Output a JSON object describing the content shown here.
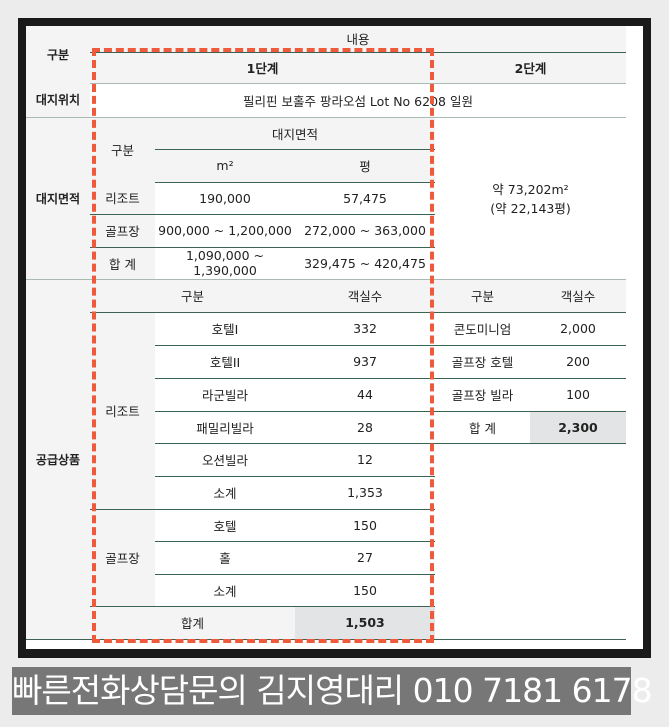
{
  "header": {
    "category": "구분",
    "content": "내용",
    "phase1": "1단계",
    "phase2": "2단계"
  },
  "location": {
    "label": "대지위치",
    "value": "필리핀 보홀주 팡라오섬 Lot No 6208 일원"
  },
  "site_area": {
    "label": "대지면적",
    "sub_category": "구분",
    "sub_header": "대지면적",
    "unit_m2": "m²",
    "unit_pyeong": "평",
    "rows": [
      {
        "name": "리조트",
        "m2": "190,000",
        "pyeong": "57,475"
      },
      {
        "name": "골프장",
        "m2": "900,000 ~ 1,200,000",
        "pyeong": "272,000 ~ 363,000"
      },
      {
        "name": "합 계",
        "m2": "1,090,000 ~ 1,390,000",
        "pyeong": "329,475 ~ 420,475"
      }
    ],
    "phase2_line1": "약 73,202m²",
    "phase2_line2": "(약 22,143평)"
  },
  "supply": {
    "label": "공급상품",
    "col_category": "구분",
    "col_rooms": "객실수",
    "resort": {
      "label": "리조트",
      "rows": [
        {
          "name": "호텔I",
          "rooms": "332"
        },
        {
          "name": "호텔II",
          "rooms": "937"
        },
        {
          "name": "라군빌라",
          "rooms": "44"
        },
        {
          "name": "패밀리빌라",
          "rooms": "28"
        },
        {
          "name": "오션빌라",
          "rooms": "12"
        },
        {
          "name": "소계",
          "rooms": "1,353"
        }
      ]
    },
    "golf": {
      "label": "골프장",
      "rows": [
        {
          "name": "호텔",
          "rooms": "150"
        },
        {
          "name": "홀",
          "rooms": "27"
        },
        {
          "name": "소계",
          "rooms": "150"
        }
      ]
    },
    "total_label": "합계",
    "total_value": "1,503",
    "phase2": {
      "rows": [
        {
          "name": "콘도미니엄",
          "rooms": "2,000"
        },
        {
          "name": "골프장 호텔",
          "rooms": "200"
        },
        {
          "name": "골프장 빌라",
          "rooms": "100"
        }
      ],
      "total_label": "합 계",
      "total_value": "2,300"
    }
  },
  "banner": {
    "text": "빠른전화상담문의 김지영대리 010 7181 6178"
  },
  "colors": {
    "line": "#3b6352",
    "highlight_dash": "#f05a3c",
    "banner_bg": "#777777"
  }
}
